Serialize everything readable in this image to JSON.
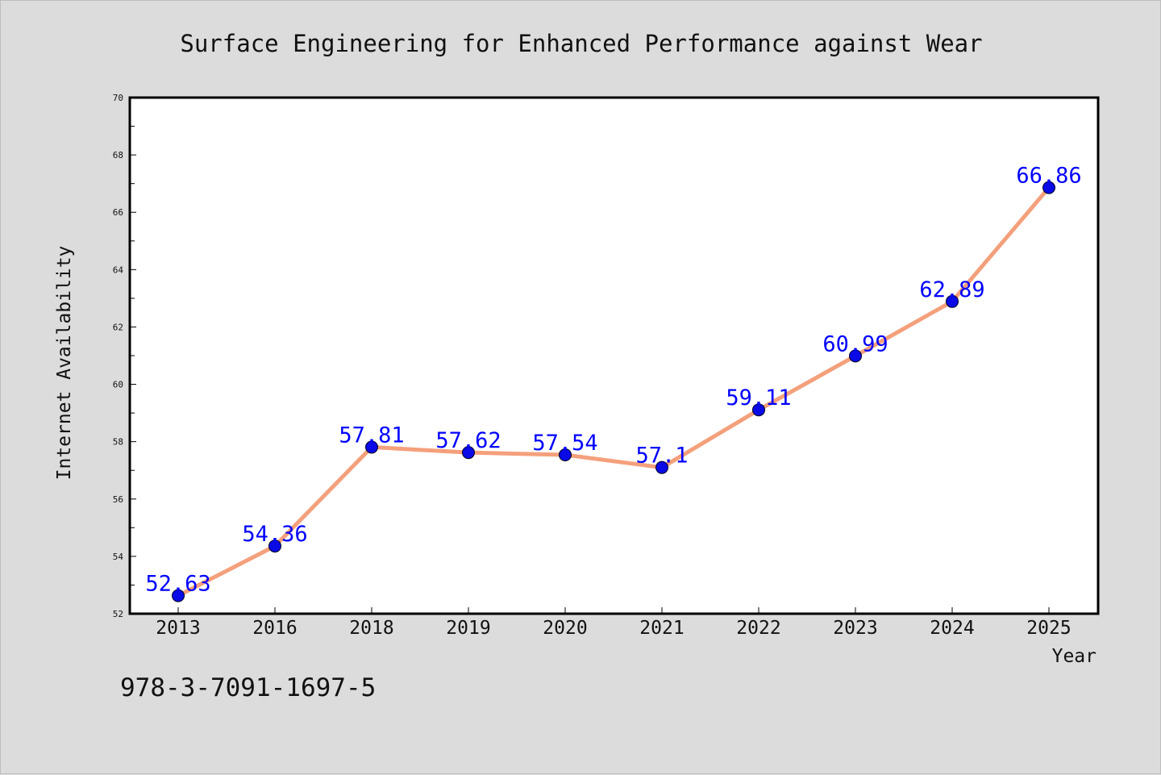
{
  "chart_data": {
    "type": "line",
    "title": "Surface Engineering for Enhanced Performance against Wear",
    "xlabel": "Year",
    "ylabel": "Internet Availability",
    "categories": [
      "2013",
      "2016",
      "2018",
      "2019",
      "2020",
      "2021",
      "2022",
      "2023",
      "2024",
      "2025"
    ],
    "values": [
      52.63,
      54.36,
      57.81,
      57.62,
      57.54,
      57.1,
      59.11,
      60.99,
      62.89,
      66.86
    ],
    "data_labels": [
      "52.63",
      "54.36",
      "57.81",
      "57.62",
      "57.54",
      "57.1",
      "59.11",
      "60.99",
      "62.89",
      "66.86"
    ],
    "ylim": [
      52,
      70
    ],
    "yticks": [
      52,
      54,
      56,
      58,
      60,
      62,
      64,
      66,
      68,
      70
    ],
    "ytick_labels": [
      "52",
      "54",
      "56",
      "58",
      "60",
      "62",
      "64",
      "66",
      "68",
      "70"
    ],
    "grid": false,
    "colors": {
      "line": "#f4a07c",
      "marker": "#0a0ae6",
      "label": "#0000ff",
      "background": "#dcdcdc",
      "plot_background": "#ffffff"
    }
  },
  "footer": {
    "isbn": "978-3-7091-1697-5"
  }
}
